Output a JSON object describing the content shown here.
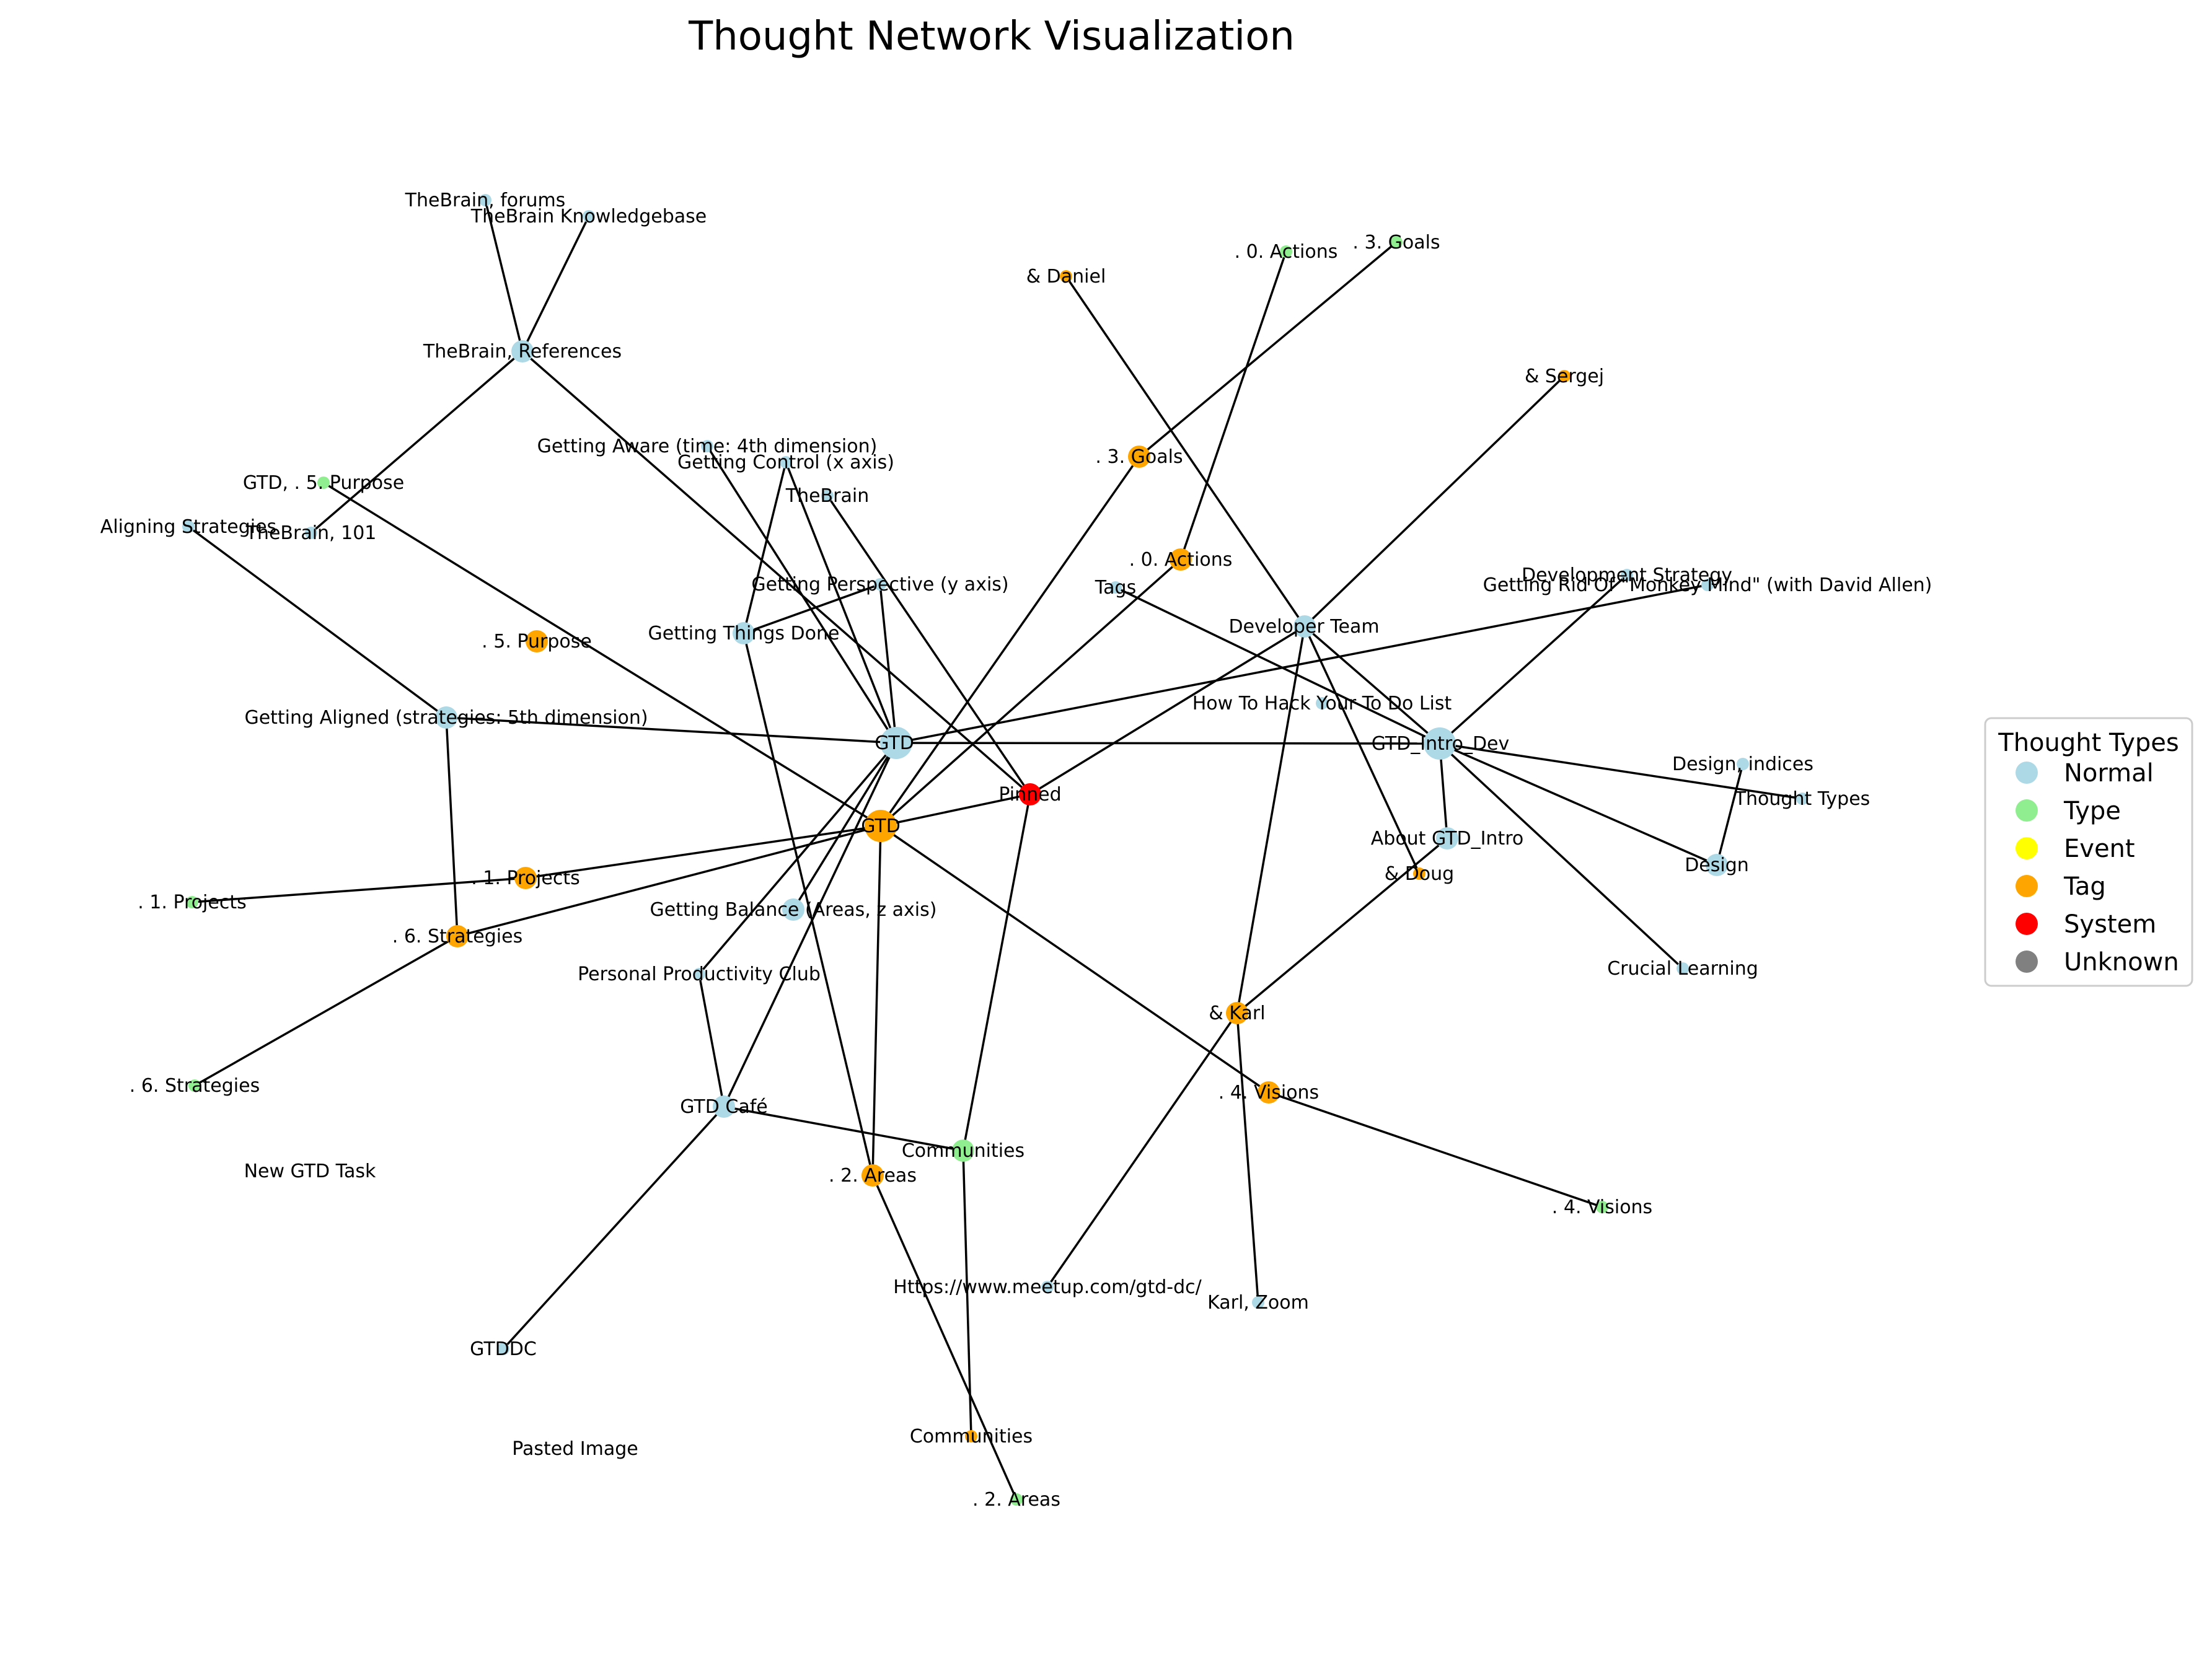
{
  "title": "Thought Network Visualization",
  "colors": {
    "Normal": "#add8e6",
    "Type": "#90ee90",
    "Event": "#ffff00",
    "Tag": "#ffa500",
    "System": "#ff0000",
    "Unknown": "#808080"
  },
  "legend": {
    "title": "Thought Types",
    "items": [
      "Normal",
      "Type",
      "Event",
      "Tag",
      "System",
      "Unknown"
    ]
  },
  "nodes": [
    {
      "id": "gtd_n",
      "label": "GTD",
      "type": "Normal",
      "weight": 3
    },
    {
      "id": "gtd_t",
      "label": "GTD",
      "type": "Tag",
      "weight": 3
    },
    {
      "id": "pinned",
      "label": "Pinned",
      "type": "System",
      "weight": 2
    },
    {
      "id": "intro_dev",
      "label": "GTD_Intro_Dev",
      "type": "Normal",
      "weight": 3
    },
    {
      "id": "dev_team",
      "label": "Developer Team",
      "type": "Normal",
      "weight": 2
    },
    {
      "id": "tb_refs",
      "label": "TheBrain, References",
      "type": "Normal",
      "weight": 2
    },
    {
      "id": "tb_forums",
      "label": "TheBrain, forums",
      "type": "Normal",
      "weight": 1
    },
    {
      "id": "tb_kb",
      "label": "TheBrain Knowledgebase",
      "type": "Normal",
      "weight": 1
    },
    {
      "id": "tb_101",
      "label": "TheBrain, 101",
      "type": "Normal",
      "weight": 1
    },
    {
      "id": "thebrain",
      "label": "TheBrain",
      "type": "Normal",
      "weight": 1
    },
    {
      "id": "g_aware",
      "label": "Getting Aware (time: 4th dimension)",
      "type": "Normal",
      "weight": 1
    },
    {
      "id": "g_control",
      "label": "Getting Control (x axis)",
      "type": "Normal",
      "weight": 1
    },
    {
      "id": "g_persp",
      "label": "Getting Perspective (y axis)",
      "type": "Normal",
      "weight": 1
    },
    {
      "id": "g_done",
      "label": "Getting Things Done",
      "type": "Normal",
      "weight": 2
    },
    {
      "id": "g_aligned",
      "label": "Getting Aligned (strategies: 5th dimension)",
      "type": "Normal",
      "weight": 2
    },
    {
      "id": "g_balance",
      "label": "Getting Balance (Areas, z axis)",
      "type": "Normal",
      "weight": 2
    },
    {
      "id": "ppc",
      "label": "Personal Productivity Club",
      "type": "Normal",
      "weight": 1
    },
    {
      "id": "cafe",
      "label": "GTD Café",
      "type": "Normal",
      "weight": 2
    },
    {
      "id": "gtddc",
      "label": "GTDDC",
      "type": "Normal",
      "weight": 1
    },
    {
      "id": "align_strat",
      "label": "Aligning Strategies",
      "type": "Normal",
      "weight": 1
    },
    {
      "id": "gtd_5p",
      "label": "GTD, . 5. Purpose",
      "type": "Type",
      "weight": 1
    },
    {
      "id": "t_5p",
      "label": ". 5. Purpose",
      "type": "Tag",
      "weight": 2
    },
    {
      "id": "t_1proj",
      "label": ". 1. Projects",
      "type": "Tag",
      "weight": 2
    },
    {
      "id": "y_1proj",
      "label": ". 1. Projects",
      "type": "Type",
      "weight": 1
    },
    {
      "id": "t_6strat",
      "label": ". 6. Strategies",
      "type": "Tag",
      "weight": 2
    },
    {
      "id": "y_6strat",
      "label": ". 6. Strategies",
      "type": "Type",
      "weight": 1
    },
    {
      "id": "new_task",
      "label": "New GTD Task",
      "type": "Normal",
      "weight": 0
    },
    {
      "id": "pasted",
      "label": "Pasted Image",
      "type": "Normal",
      "weight": 0
    },
    {
      "id": "t_2areas",
      "label": ". 2. Areas",
      "type": "Tag",
      "weight": 2
    },
    {
      "id": "y_2areas",
      "label": ". 2. Areas",
      "type": "Type",
      "weight": 1
    },
    {
      "id": "y_comm",
      "label": "Communities",
      "type": "Type",
      "weight": 2
    },
    {
      "id": "t_comm",
      "label": "Communities",
      "type": "Tag",
      "weight": 1
    },
    {
      "id": "meetup",
      "label": "Https://www.meetup.com/gtd-dc/",
      "type": "Normal",
      "weight": 1
    },
    {
      "id": "karl",
      "label": "& Karl",
      "type": "Tag",
      "weight": 2
    },
    {
      "id": "karl_zoom",
      "label": "Karl, Zoom",
      "type": "Normal",
      "weight": 1
    },
    {
      "id": "t_4vis",
      "label": ". 4. Visions",
      "type": "Tag",
      "weight": 2
    },
    {
      "id": "y_4vis",
      "label": ". 4. Visions",
      "type": "Type",
      "weight": 1
    },
    {
      "id": "daniel",
      "label": "& Daniel",
      "type": "Tag",
      "weight": 1
    },
    {
      "id": "y_0act",
      "label": ". 0. Actions",
      "type": "Type",
      "weight": 1
    },
    {
      "id": "y_3goals",
      "label": ". 3. Goals",
      "type": "Type",
      "weight": 1
    },
    {
      "id": "sergej",
      "label": "& Sergej",
      "type": "Tag",
      "weight": 1
    },
    {
      "id": "t_3goals",
      "label": ". 3. Goals",
      "type": "Tag",
      "weight": 2
    },
    {
      "id": "t_0act",
      "label": ". 0. Actions",
      "type": "Tag",
      "weight": 2
    },
    {
      "id": "tags",
      "label": "Tags",
      "type": "Normal",
      "weight": 1
    },
    {
      "id": "hack",
      "label": "How To Hack Your To Do List",
      "type": "Normal",
      "weight": 1
    },
    {
      "id": "dev_strat",
      "label": "Development Strategy",
      "type": "Normal",
      "weight": 1
    },
    {
      "id": "monkey",
      "label": "Getting Rid Of \"Monkey Mind\" (with David Allen)",
      "type": "Normal",
      "weight": 1
    },
    {
      "id": "design_idx",
      "label": "Design, indices",
      "type": "Normal",
      "weight": 1
    },
    {
      "id": "thought_types",
      "label": "Thought Types",
      "type": "Normal",
      "weight": 1
    },
    {
      "id": "design",
      "label": "Design",
      "type": "Normal",
      "weight": 2
    },
    {
      "id": "about",
      "label": "About GTD_Intro",
      "type": "Normal",
      "weight": 2
    },
    {
      "id": "doug",
      "label": "& Doug",
      "type": "Tag",
      "weight": 1
    },
    {
      "id": "crucial",
      "label": "Crucial Learning",
      "type": "Normal",
      "weight": 1
    }
  ],
  "edges": [
    [
      "tb_refs",
      "tb_forums"
    ],
    [
      "tb_refs",
      "tb_kb"
    ],
    [
      "tb_refs",
      "tb_101"
    ],
    [
      "tb_refs",
      "pinned"
    ],
    [
      "gtd_5p",
      "gtd_t"
    ],
    [
      "align_strat",
      "g_aligned"
    ],
    [
      "g_aligned",
      "gtd_n"
    ],
    [
      "g_aligned",
      "t_6strat"
    ],
    [
      "g_aware",
      "gtd_n"
    ],
    [
      "g_control",
      "gtd_n"
    ],
    [
      "g_control",
      "g_done"
    ],
    [
      "thebrain",
      "pinned"
    ],
    [
      "g_persp",
      "gtd_n"
    ],
    [
      "g_persp",
      "g_done"
    ],
    [
      "g_done",
      "t_2areas"
    ],
    [
      "gtd_n",
      "intro_dev"
    ],
    [
      "gtd_n",
      "monkey"
    ],
    [
      "gtd_n",
      "g_balance"
    ],
    [
      "gtd_n",
      "ppc"
    ],
    [
      "gtd_n",
      "cafe"
    ],
    [
      "gtd_t",
      "pinned"
    ],
    [
      "gtd_t",
      "t_1proj"
    ],
    [
      "gtd_t",
      "t_6strat"
    ],
    [
      "gtd_t",
      "t_2areas"
    ],
    [
      "gtd_t",
      "t_4vis"
    ],
    [
      "gtd_t",
      "t_3goals"
    ],
    [
      "gtd_t",
      "t_0act"
    ],
    [
      "y_1proj",
      "t_1proj"
    ],
    [
      "t_6strat",
      "y_6strat"
    ],
    [
      "ppc",
      "cafe"
    ],
    [
      "cafe",
      "y_comm"
    ],
    [
      "cafe",
      "gtddc"
    ],
    [
      "y_comm",
      "t_comm"
    ],
    [
      "y_comm",
      "pinned"
    ],
    [
      "t_2areas",
      "y_2areas"
    ],
    [
      "t_4vis",
      "y_4vis"
    ],
    [
      "karl",
      "karl_zoom"
    ],
    [
      "karl",
      "dev_team"
    ],
    [
      "karl",
      "about"
    ],
    [
      "karl",
      "meetup"
    ],
    [
      "t_3goals",
      "y_3goals"
    ],
    [
      "t_0act",
      "y_0act"
    ],
    [
      "daniel",
      "dev_team"
    ],
    [
      "sergej",
      "dev_team"
    ],
    [
      "dev_team",
      "pinned"
    ],
    [
      "dev_team",
      "intro_dev"
    ],
    [
      "dev_team",
      "doug"
    ],
    [
      "tags",
      "intro_dev"
    ],
    [
      "intro_dev",
      "dev_strat"
    ],
    [
      "intro_dev",
      "thought_types"
    ],
    [
      "intro_dev",
      "design"
    ],
    [
      "intro_dev",
      "about"
    ],
    [
      "intro_dev",
      "crucial"
    ],
    [
      "design_idx",
      "design"
    ]
  ]
}
